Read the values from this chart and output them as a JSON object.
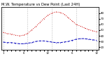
{
  "title": "M.W. Temperature vs Dew Point (Last 24H)",
  "temp_color": "#cc0000",
  "dew_color": "#0000bb",
  "background": "#ffffff",
  "grid_color": "#888888",
  "temp_values": [
    46,
    44,
    43,
    41,
    40,
    41,
    44,
    50,
    56,
    63,
    70,
    76,
    80,
    82,
    81,
    78,
    72,
    66,
    60,
    57,
    54,
    51,
    49,
    47
  ],
  "dew_values": [
    29,
    28,
    28,
    27,
    26,
    26,
    27,
    28,
    30,
    31,
    31,
    30,
    29,
    28,
    28,
    29,
    30,
    32,
    34,
    35,
    35,
    34,
    33,
    32
  ],
  "ylim": [
    15,
    90
  ],
  "yticks_right": [
    80,
    70,
    60,
    50,
    40,
    30,
    20
  ],
  "n_xticks": 24,
  "xtick_labels": [
    "1",
    "",
    "",
    "",
    "",
    "6",
    "",
    "",
    "",
    "",
    "",
    "12",
    "",
    "",
    "",
    "",
    "",
    "6",
    "",
    "",
    "",
    "",
    "",
    "12"
  ],
  "vline_positions": [
    0,
    6,
    12,
    18,
    23
  ],
  "title_fontsize": 3.8,
  "tick_fontsize": 2.8,
  "linewidth": 0.7
}
